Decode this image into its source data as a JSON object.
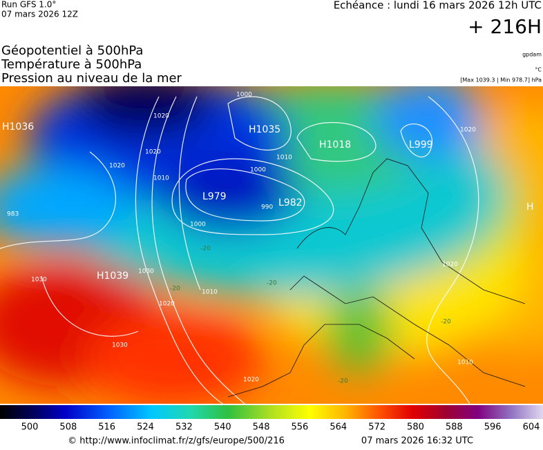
{
  "header": {
    "run": "Run GFS 1.0°",
    "run_date": "07 mars 2026 12Z",
    "valid": "Echéance : lundi 16 mars 2026 12h UTC",
    "lead": "+ 216H",
    "fields": [
      "Géopotentiel à 500hPa",
      "Température à 500hPa",
      "Pression au niveau de la mer"
    ],
    "units": [
      "gpdam",
      "°C",
      "[Max 1039.3 | Min 978.7] hPa"
    ]
  },
  "map": {
    "centers": [
      "H1036",
      "H1035",
      "H1018",
      "L999",
      "L979",
      "L982",
      "H1039",
      "H"
    ],
    "isobars": [
      "1000",
      "1010",
      "1000",
      "990",
      "1000",
      "1020",
      "1020",
      "1010",
      "1020",
      "1030",
      "1020",
      "1010",
      "1030",
      "1030",
      "1020",
      "1020",
      "1020",
      "1010",
      "983"
    ],
    "isotherms": [
      "-20",
      "-20",
      "-20",
      "-20",
      "-20"
    ]
  },
  "colorbar": {
    "labels": [
      "500",
      "508",
      "516",
      "524",
      "532",
      "540",
      "548",
      "556",
      "564",
      "572",
      "580",
      "588",
      "596",
      "604"
    ]
  },
  "footer": {
    "source": "© http://www.infoclimat.fr/z/gfs/europe/500/216",
    "generated": "07 mars 2026 16:32 UTC"
  }
}
